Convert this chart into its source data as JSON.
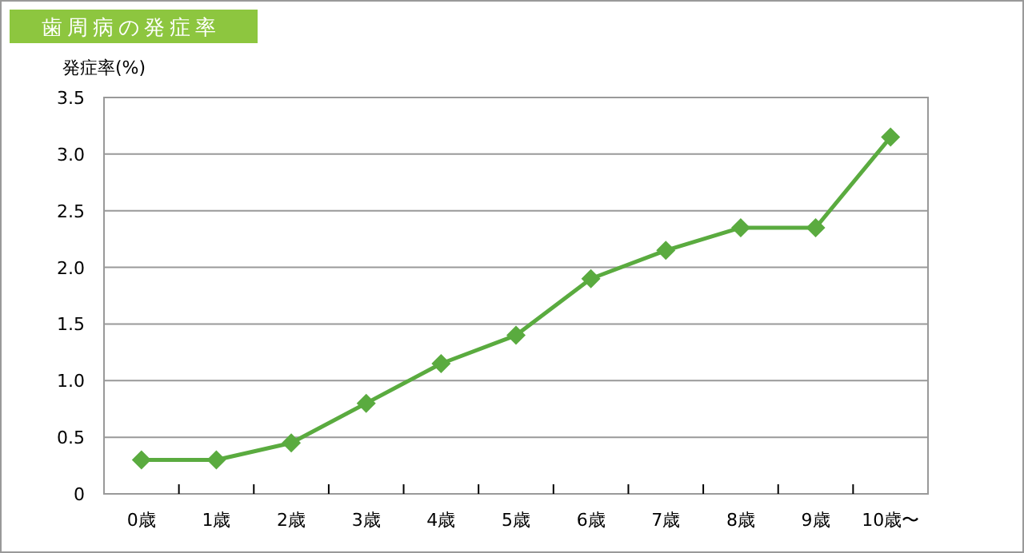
{
  "chart_data": {
    "type": "line",
    "title": "歯周病の発症率",
    "ylabel": "発症率(%)",
    "categories": [
      "0歳",
      "1歳",
      "2歳",
      "3歳",
      "4歳",
      "5歳",
      "6歳",
      "7歳",
      "8歳",
      "9歳",
      "10歳〜"
    ],
    "series": [
      {
        "color": "#5aab3f",
        "values": [
          0.3,
          0.3,
          0.45,
          0.8,
          1.15,
          1.4,
          1.9,
          2.15,
          2.35,
          2.35,
          3.15
        ]
      }
    ],
    "ylim": [
      0,
      3.5
    ],
    "yticks": [
      0,
      0.5,
      {
        "value": 1,
        "label": "1.0"
      },
      1.5,
      {
        "value": 2,
        "label": "2.0"
      },
      2.5,
      {
        "value": 3,
        "label": "3.0"
      },
      3.5
    ],
    "grid": "y",
    "marker": "diamond",
    "line_style": "solid"
  }
}
